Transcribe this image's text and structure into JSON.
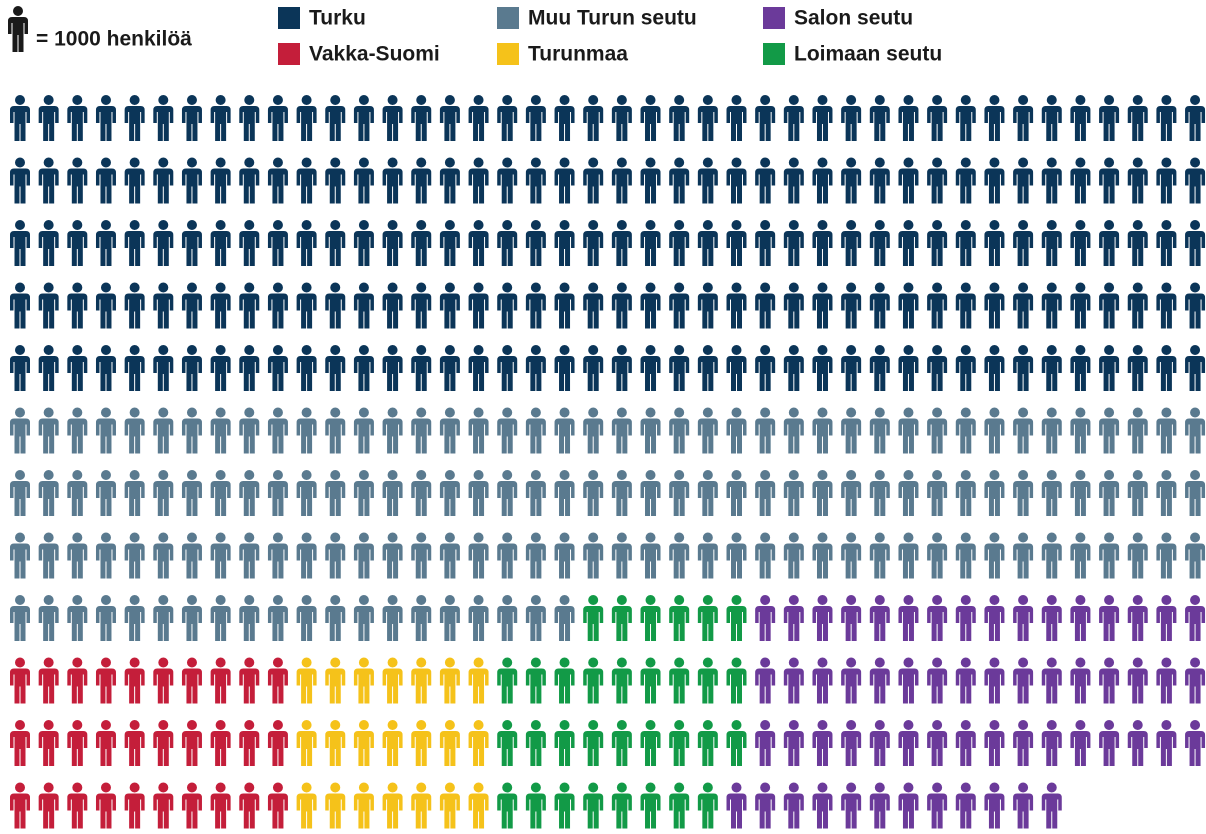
{
  "chart_data": {
    "type": "pictogram",
    "unit_label": "= 1000 henkilöä",
    "series": [
      {
        "name": "Turku",
        "color": "#0b3558",
        "values": [
          210
        ]
      },
      {
        "name": "Muu  Turun seutu",
        "color": "#5a7a8f",
        "values": [
          146
        ]
      },
      {
        "name": "Vakka-Suomi",
        "color": "#c41e3a",
        "values": [
          30
        ]
      },
      {
        "name": "Turunmaa",
        "color": "#f5c21a",
        "values": [
          21
        ]
      },
      {
        "name": "Loimaan seutu",
        "color": "#129a47",
        "values": [
          32
        ]
      },
      {
        "name": "Salon seutu",
        "color": "#6b3a9a",
        "values": [
          60
        ]
      }
    ]
  }
}
